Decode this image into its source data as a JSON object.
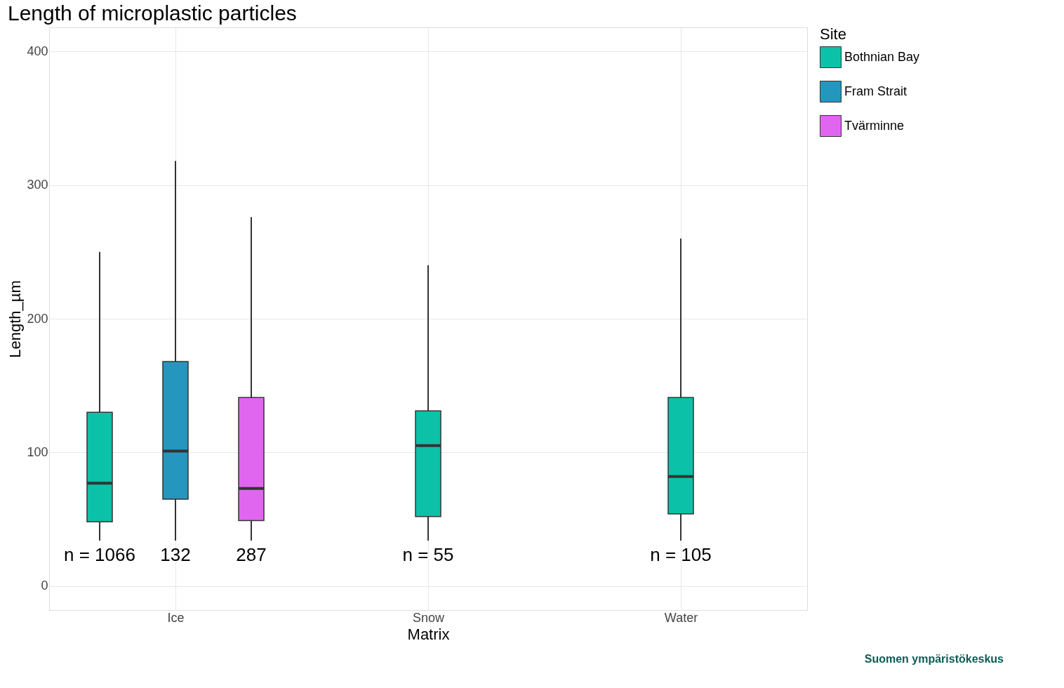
{
  "chart_data": {
    "type": "box",
    "title": "Length of microplastic particles",
    "xlabel": "Matrix",
    "ylabel": "Length_µm",
    "legend_title": "Site",
    "categories": [
      "Ice",
      "Snow",
      "Water"
    ],
    "series": [
      {
        "name": "Bothnian Bay",
        "color": "#0bc2a8",
        "boxes": [
          {
            "low": 34,
            "q1": 48,
            "median": 77,
            "q3": 130,
            "high": 250
          },
          {
            "low": 34,
            "q1": 52,
            "median": 105,
            "q3": 131,
            "high": 240
          },
          {
            "low": 34,
            "q1": 54,
            "median": 82,
            "q3": 141,
            "high": 260
          }
        ]
      },
      {
        "name": "Fram Strait",
        "color": "#2596be",
        "boxes": [
          {
            "low": 34,
            "q1": 65,
            "median": 101,
            "q3": 168,
            "high": 318
          },
          null,
          null
        ]
      },
      {
        "name": "Tvärminne",
        "color": "#e066f0",
        "boxes": [
          {
            "low": 34,
            "q1": 49,
            "median": 73,
            "q3": 141,
            "high": 276
          },
          null,
          null
        ]
      }
    ],
    "ylim": [
      -18,
      418
    ],
    "yticks": [
      0,
      100,
      200,
      300,
      400
    ],
    "grid": true,
    "legend": "right",
    "annotations": [
      "n = 1066",
      "132",
      "287",
      "n = 55",
      "n = 105",
      "Suomen ympäristökeskus"
    ]
  }
}
